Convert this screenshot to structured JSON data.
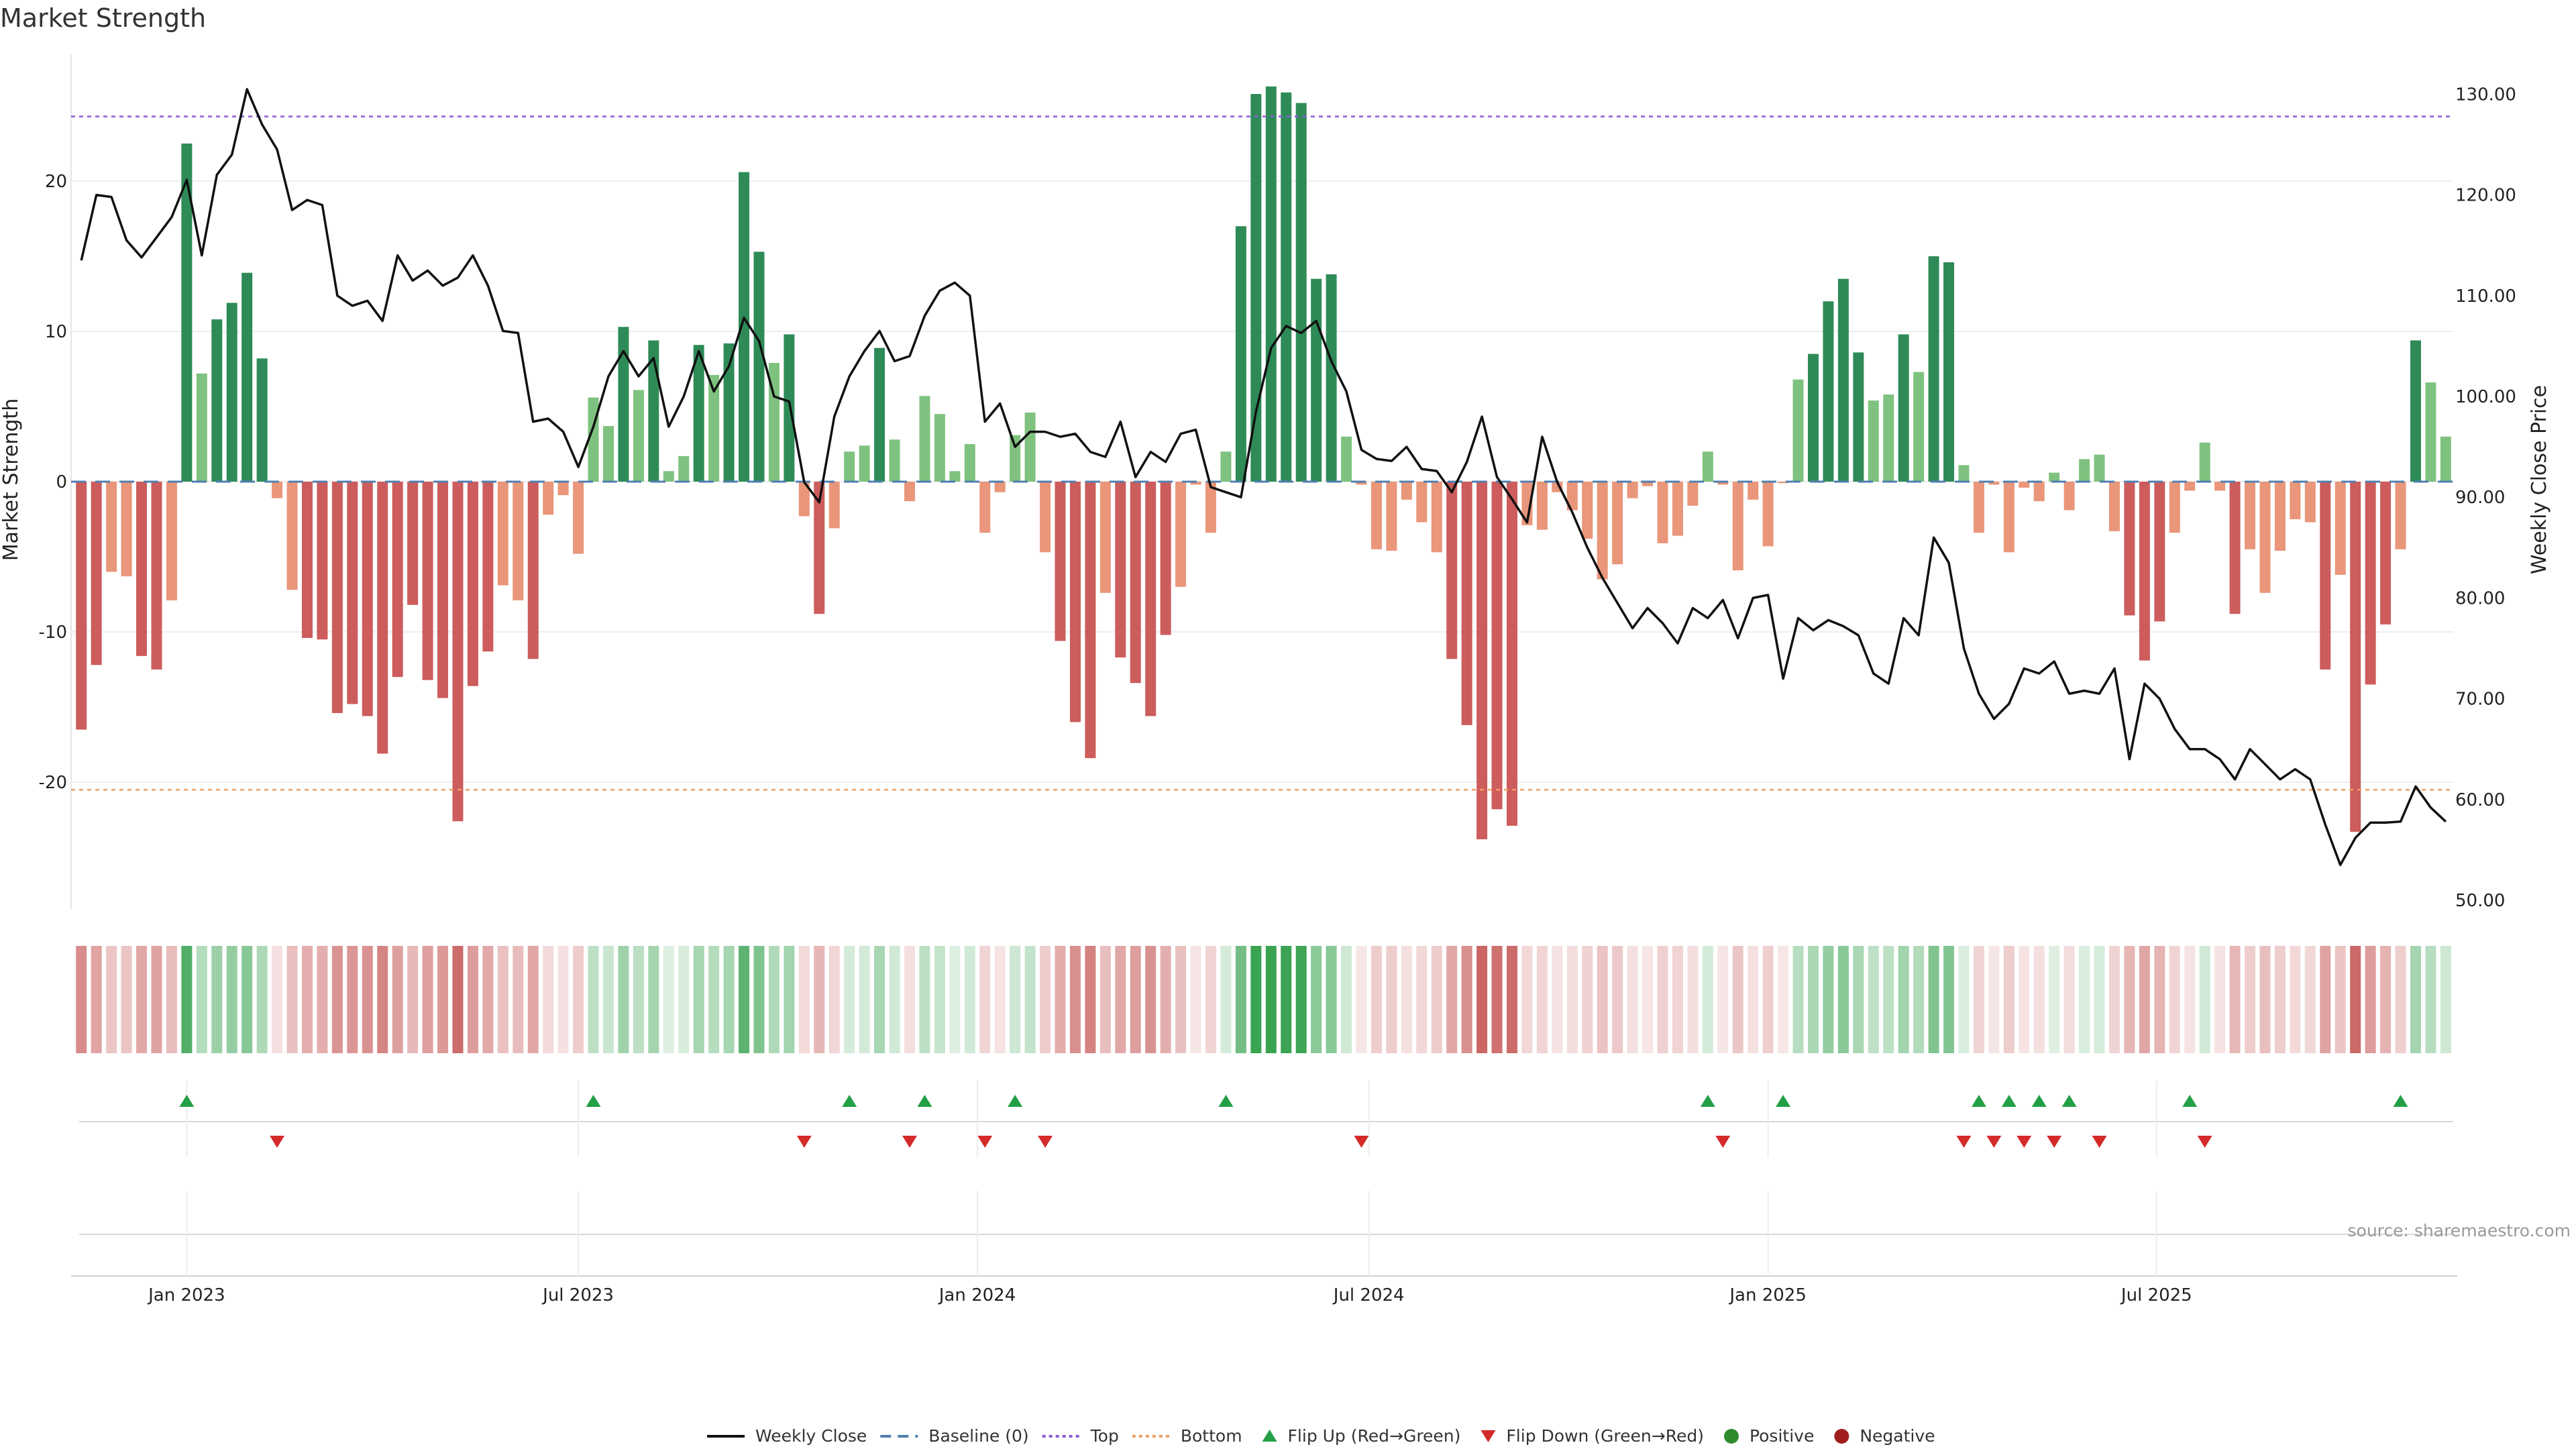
{
  "chart_data": {
    "type": "bar",
    "title": "Market Strength",
    "ylabel": "Market Strength",
    "y2label": "Weekly Close Price",
    "ylim": [
      -29,
      29
    ],
    "y2lim": [
      48,
      132
    ],
    "yticks": [
      20,
      10,
      0,
      -10,
      -20
    ],
    "y2ticks": [
      "130.00",
      "120.00",
      "110.00",
      "100.00",
      "90.00",
      "80.00",
      "70.00",
      "60.00",
      "50.00"
    ],
    "xticks": [
      {
        "label": "Jan 2023",
        "week": 7.5
      },
      {
        "label": "Jul 2023",
        "week": 33.5
      },
      {
        "label": "Jan 2024",
        "week": 60
      },
      {
        "label": "Jul 2024",
        "week": 86
      },
      {
        "label": "Jan 2025",
        "week": 112.5
      },
      {
        "label": "Jul 2025",
        "week": 138.3
      }
    ],
    "top_level": 24.3,
    "bottom_level": -20.5,
    "strength": [
      -16.5,
      -12.2,
      -6,
      -6.3,
      -11.6,
      -12.5,
      -7.9,
      22.5,
      7.2,
      10.8,
      11.9,
      13.9,
      8.2,
      -1.1,
      -7.2,
      -10.4,
      -10.5,
      -15.4,
      -14.8,
      -15.6,
      -18.1,
      -13,
      -8.2,
      -13.2,
      -14.4,
      -22.6,
      -13.6,
      -11.3,
      -6.9,
      -7.9,
      -11.8,
      -2.2,
      -0.9,
      -4.8,
      5.6,
      3.7,
      10.3,
      6.1,
      9.4,
      0.7,
      1.7,
      9.1,
      7.1,
      9.2,
      20.6,
      15.3,
      7.9,
      9.8,
      -2.3,
      -8.8,
      -3.1,
      2,
      2.4,
      8.9,
      2.8,
      -1.3,
      5.7,
      4.5,
      0.7,
      2.5,
      -3.4,
      -0.7,
      3.1,
      4.6,
      -4.7,
      -10.6,
      -16,
      -18.4,
      -7.4,
      -11.7,
      -13.4,
      -15.6,
      -10.2,
      -7,
      -0.2,
      -3.4,
      2,
      17,
      25.8,
      26.3,
      25.9,
      25.2,
      13.5,
      13.8,
      3,
      -0.2,
      -4.5,
      -4.6,
      -1.2,
      -2.7,
      -4.7,
      -11.8,
      -16.2,
      -23.8,
      -21.8,
      -22.9,
      -2.9,
      -3.2,
      -0.7,
      -1.9,
      -3.8,
      -6.5,
      -5.5,
      -1.1,
      -0.3,
      -4.1,
      -3.6,
      -1.6,
      2,
      -0.2,
      -5.9,
      -1.2,
      -4.3,
      -0.1,
      6.8,
      8.5,
      12,
      13.5,
      8.6,
      5.4,
      5.8,
      9.8,
      7.3,
      15,
      14.6,
      1.1,
      -3.4,
      -0.2,
      -4.7,
      -0.4,
      -1.3,
      0.6,
      -1.9,
      1.5,
      1.8,
      -3.3,
      -8.9,
      -11.9,
      -9.3,
      -3.4,
      -0.6,
      2.6,
      -0.6,
      -8.8,
      -4.5,
      -7.4,
      -4.6,
      -2.5,
      -2.7,
      -12.5,
      -6.2,
      -23.3,
      -13.5,
      -9.5,
      -4.5,
      9.4,
      6.6,
      3
    ],
    "price": [
      113.5,
      120,
      119.8,
      115.5,
      113.8,
      115.8,
      117.8,
      121.5,
      114,
      122,
      124,
      130.5,
      127,
      124.5,
      118.5,
      119.5,
      119,
      110,
      109,
      109.5,
      107.5,
      114,
      111.5,
      112.5,
      111,
      111.8,
      114,
      111,
      106.5,
      106.3,
      97.5,
      97.8,
      96.5,
      93,
      97,
      102,
      104.5,
      102,
      103.8,
      97,
      100,
      104.5,
      100.5,
      103,
      107.8,
      105.5,
      100,
      99.5,
      91.5,
      89.5,
      98,
      102,
      104.5,
      106.5,
      103.5,
      104,
      108,
      110.5,
      111.3,
      110,
      97.5,
      99.3,
      95,
      96.5,
      96.5,
      96,
      96.3,
      94.5,
      94,
      97.5,
      92,
      94.5,
      93.5,
      96.3,
      96.7,
      91,
      90.5,
      90,
      98.5,
      104.8,
      107,
      106.3,
      107.5,
      103.5,
      100.5,
      94.7,
      93.8,
      93.6,
      95,
      92.8,
      92.6,
      90.5,
      93.5,
      98,
      92,
      89.8,
      87.5,
      96,
      91.5,
      88.5,
      85,
      82,
      79.5,
      77,
      79,
      77.5,
      75.5,
      79,
      78,
      79.8,
      76,
      80,
      80.3,
      72,
      78,
      76.8,
      77.8,
      77.2,
      76.3,
      72.5,
      71.5,
      78,
      76.3,
      86,
      83.5,
      75,
      70.5,
      68,
      69.5,
      73,
      72.5,
      73.7,
      70.5,
      70.8,
      70.5,
      73,
      64,
      71.5,
      70,
      67,
      65,
      65,
      64,
      62,
      65,
      63.5,
      62,
      63,
      62,
      57.5,
      53.5,
      56.2,
      57.7,
      57.7,
      57.8,
      61.3,
      59.2,
      57.8
    ],
    "flip_up_weeks": [
      7,
      34,
      51,
      56,
      62,
      76,
      108,
      113,
      126,
      128,
      130,
      132,
      140,
      154
    ],
    "flip_down_weeks": [
      13,
      48,
      55,
      60,
      64,
      85,
      109,
      125,
      127,
      129,
      131,
      134,
      141
    ],
    "legend": [
      "Weekly Close",
      "Baseline (0)",
      "Top",
      "Bottom",
      "Flip Up (Red→Green)",
      "Flip Down (Green→Red)",
      "Positive",
      "Negative"
    ],
    "colors": {
      "strong_pos": "#2e8b57",
      "weak_pos": "#7fc27f",
      "strong_neg": "#cd5c5c",
      "weak_neg": "#e9967a",
      "price": "#111111",
      "baseline": "#4f7fb0",
      "top": "#8a5cd6",
      "bottom": "#f0a060",
      "flip_up": "#22a046",
      "flip_down": "#d42a2a",
      "positive": "#2e8b2e",
      "negative": "#a01e1e"
    }
  },
  "source": "source: sharemaestro.com"
}
